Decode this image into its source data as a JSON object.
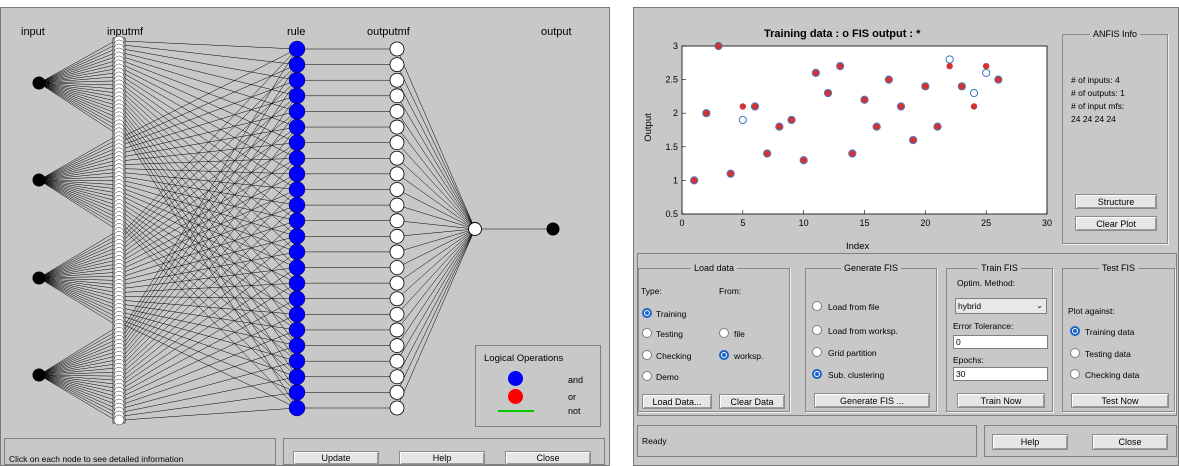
{
  "left": {
    "layer_labels": {
      "input": "input",
      "inputmf": "inputmf",
      "rule": "rule",
      "outputmf": "outputmf",
      "output": "output"
    },
    "input_count": 4,
    "rule_count": 24,
    "legend": {
      "title": "Logical Operations",
      "items": [
        {
          "label": "and",
          "color": "#0000ff"
        },
        {
          "label": "or",
          "color": "#ff0000"
        },
        {
          "label": "not",
          "color": "#00cc00"
        }
      ]
    },
    "status_text": "Click on each node to see detailed information",
    "buttons": {
      "update": "Update",
      "help": "Help",
      "close": "Close"
    },
    "colors": {
      "rule_node": "#0000ff",
      "background": "#c8c8c8"
    }
  },
  "right": {
    "anfis_info": {
      "title": "ANFIS Info",
      "lines": [
        "# of inputs: 4",
        "# of outputs: 1",
        "# of input mfs:",
        "24  24  24  24"
      ],
      "structure_label": "Structure",
      "clear_plot_label": "Clear Plot"
    },
    "load_data": {
      "title": "Load data",
      "type_label": "Type:",
      "from_label": "From:",
      "types": [
        {
          "label": "Training",
          "selected": true
        },
        {
          "label": "Testing",
          "selected": false
        },
        {
          "label": "Checking",
          "selected": false
        },
        {
          "label": "Demo",
          "selected": false
        }
      ],
      "sources": [
        {
          "label": "file",
          "selected": false
        },
        {
          "label": "worksp.",
          "selected": true
        }
      ],
      "load_button": "Load Data...",
      "clear_button": "Clear Data"
    },
    "generate_fis": {
      "title": "Generate FIS",
      "options": [
        {
          "label": "Load from file",
          "selected": false
        },
        {
          "label": "Load from worksp.",
          "selected": false
        },
        {
          "label": "Grid partition",
          "selected": false
        },
        {
          "label": "Sub. clustering",
          "selected": true
        }
      ],
      "button": "Generate FIS ..."
    },
    "train_fis": {
      "title": "Train FIS",
      "optim_label": "Optim. Method:",
      "method": "hybrid",
      "tolerance_label": "Error Tolerance:",
      "tolerance": "0",
      "epochs_label": "Epochs:",
      "epochs": "30",
      "button": "Train Now"
    },
    "test_fis": {
      "title": "Test FIS",
      "plot_against_label": "Plot against:",
      "options": [
        {
          "label": "Training data",
          "selected": true
        },
        {
          "label": "Testing data",
          "selected": false
        },
        {
          "label": "Checking data",
          "selected": false
        }
      ],
      "button": "Test Now"
    },
    "status_text": "Ready",
    "buttons": {
      "help": "Help",
      "close": "Close"
    }
  },
  "chart_data": {
    "type": "scatter",
    "title": "Training data : o   FIS output : *",
    "xlabel": "Index",
    "ylabel": "Output",
    "xlim": [
      0,
      30
    ],
    "ylim": [
      0.5,
      3
    ],
    "xticks": [
      0,
      5,
      10,
      15,
      20,
      25,
      30
    ],
    "yticks": [
      0.5,
      1,
      1.5,
      2,
      2.5,
      3
    ],
    "grid": false,
    "series": [
      {
        "name": "Training data",
        "marker": "o",
        "color": "#3b78c8",
        "points": [
          [
            1,
            1.0
          ],
          [
            2,
            2.0
          ],
          [
            3,
            3.0
          ],
          [
            4,
            1.1
          ],
          [
            5,
            1.9
          ],
          [
            6,
            2.1
          ],
          [
            7,
            1.4
          ],
          [
            8,
            1.8
          ],
          [
            9,
            1.9
          ],
          [
            10,
            1.3
          ],
          [
            11,
            2.6
          ],
          [
            12,
            2.3
          ],
          [
            13,
            2.7
          ],
          [
            14,
            1.4
          ],
          [
            15,
            2.2
          ],
          [
            16,
            1.8
          ],
          [
            17,
            2.5
          ],
          [
            18,
            2.1
          ],
          [
            19,
            1.6
          ],
          [
            20,
            2.4
          ],
          [
            21,
            1.8
          ],
          [
            22,
            2.8
          ],
          [
            23,
            2.4
          ],
          [
            24,
            2.3
          ],
          [
            25,
            2.6
          ],
          [
            26,
            2.5
          ]
        ]
      },
      {
        "name": "FIS output",
        "marker": "*",
        "color": "#d23232",
        "points": [
          [
            1,
            1.0
          ],
          [
            2,
            2.0
          ],
          [
            3,
            3.0
          ],
          [
            4,
            1.1
          ],
          [
            5,
            2.1
          ],
          [
            6,
            2.1
          ],
          [
            7,
            1.4
          ],
          [
            8,
            1.8
          ],
          [
            9,
            1.9
          ],
          [
            10,
            1.3
          ],
          [
            11,
            2.6
          ],
          [
            12,
            2.3
          ],
          [
            13,
            2.7
          ],
          [
            14,
            1.4
          ],
          [
            15,
            2.2
          ],
          [
            16,
            1.8
          ],
          [
            17,
            2.5
          ],
          [
            18,
            2.1
          ],
          [
            19,
            1.6
          ],
          [
            20,
            2.4
          ],
          [
            21,
            1.8
          ],
          [
            22,
            2.7
          ],
          [
            23,
            2.4
          ],
          [
            24,
            2.1
          ],
          [
            25,
            2.7
          ],
          [
            26,
            2.5
          ]
        ]
      }
    ]
  }
}
